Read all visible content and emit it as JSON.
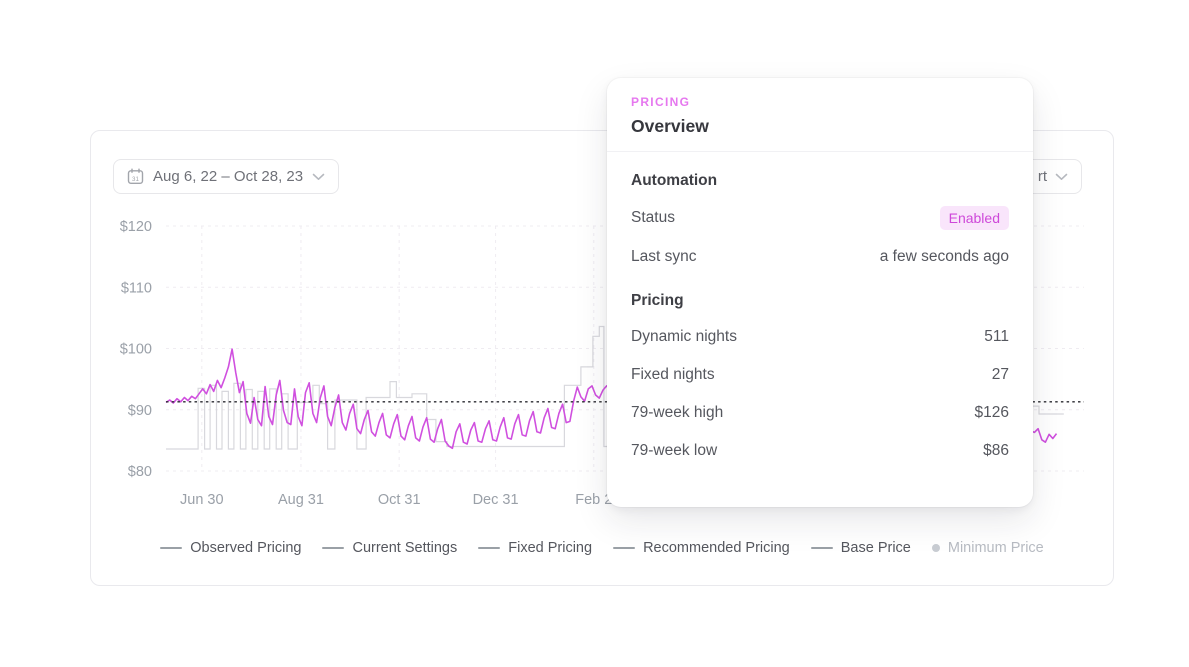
{
  "panel": {
    "date_range_picker": {
      "value": "Aug 6, 22 – Oct 28, 23",
      "icon": "calendar-icon"
    },
    "clipped_dropdown": {
      "visible_text": "rt",
      "icon": "chevron-down-icon"
    }
  },
  "overlay_card": {
    "eyebrow": "PRICING",
    "title": "Overview",
    "sections": [
      {
        "heading": "Automation",
        "rows": [
          {
            "label": "Status",
            "value": "Enabled",
            "style": "badge"
          },
          {
            "label": "Last sync",
            "value": "a few seconds ago",
            "style": "text"
          }
        ]
      },
      {
        "heading": "Pricing",
        "rows": [
          {
            "label": "Dynamic nights",
            "value": "511",
            "style": "text"
          },
          {
            "label": "Fixed nights",
            "value": "27",
            "style": "text"
          },
          {
            "label": "79-week high",
            "value": "$126",
            "style": "text"
          },
          {
            "label": "79-week low",
            "value": "$86",
            "style": "text"
          }
        ]
      }
    ]
  },
  "chart_data": {
    "type": "line",
    "title": "",
    "xlabel": "",
    "ylabel": "",
    "grid": true,
    "legend_position": "bottom",
    "x_axis": {
      "tick_labels": [
        "Jun 30",
        "Aug 31",
        "Oct 31",
        "Dec 31",
        "Feb 2"
      ],
      "tick_positions_pct": [
        3.9,
        14.7,
        25.4,
        35.9,
        46.6
      ]
    },
    "y_axis": {
      "tick_labels": [
        "$120",
        "$110",
        "$100",
        "$90",
        "$80"
      ],
      "tick_values": [
        120,
        110,
        100,
        90,
        80
      ],
      "unit": "$",
      "ylim": [
        76,
        124
      ]
    },
    "base_price_line": {
      "value": 91.3,
      "style": "dotted-black"
    },
    "legend": [
      {
        "label": "Observed Pricing",
        "marker": "line",
        "enabled": true
      },
      {
        "label": "Current Settings",
        "marker": "line",
        "enabled": true
      },
      {
        "label": "Fixed Pricing",
        "marker": "line",
        "enabled": true
      },
      {
        "label": "Recommended Pricing",
        "marker": "line",
        "enabled": true
      },
      {
        "label": "Base Price",
        "marker": "line",
        "enabled": true
      },
      {
        "label": "Minimum Price",
        "marker": "dot",
        "enabled": false
      }
    ],
    "series": [
      {
        "name": "Observed Pricing",
        "color": "#d050df",
        "shape": "jagged-line",
        "points": [
          [
            0,
            91.2
          ],
          [
            0.4,
            91.6
          ],
          [
            0.8,
            91.1
          ],
          [
            1.2,
            91.8
          ],
          [
            1.6,
            91.3
          ],
          [
            2,
            92
          ],
          [
            2.4,
            91.5
          ],
          [
            2.8,
            92.2
          ],
          [
            3.2,
            91.8
          ],
          [
            3.6,
            92.6
          ],
          [
            4,
            93.4
          ],
          [
            4.4,
            92.6
          ],
          [
            4.8,
            94.1
          ],
          [
            5.2,
            93
          ],
          [
            5.6,
            94.8
          ],
          [
            6,
            93.6
          ],
          [
            6.4,
            95.2
          ],
          [
            6.8,
            97
          ],
          [
            7.2,
            99.9
          ],
          [
            7.6,
            96
          ],
          [
            8,
            92.8
          ],
          [
            8.4,
            94.6
          ],
          [
            8.8,
            89.4
          ],
          [
            9.2,
            87.8
          ],
          [
            9.6,
            92
          ],
          [
            10,
            88.4
          ],
          [
            10.4,
            87.4
          ],
          [
            10.8,
            93.8
          ],
          [
            11.2,
            88.9
          ],
          [
            11.6,
            87.6
          ],
          [
            12,
            92.4
          ],
          [
            12.4,
            94.8
          ],
          [
            12.8,
            89.9
          ],
          [
            13.2,
            87.9
          ],
          [
            13.6,
            87.6
          ],
          [
            14,
            93.4
          ],
          [
            14.4,
            88.9
          ],
          [
            14.8,
            87.4
          ],
          [
            15.2,
            92.8
          ],
          [
            15.6,
            94.4
          ],
          [
            16,
            89.4
          ],
          [
            16.4,
            87.9
          ],
          [
            16.8,
            91.9
          ],
          [
            17.2,
            93.9
          ],
          [
            17.6,
            88.9
          ],
          [
            18,
            87.4
          ],
          [
            18.4,
            90.4
          ],
          [
            18.8,
            92.4
          ],
          [
            19.2,
            87.9
          ],
          [
            19.6,
            86.7
          ],
          [
            20,
            89.4
          ],
          [
            20.4,
            90.9
          ],
          [
            20.8,
            86.9
          ],
          [
            21.2,
            86.1
          ],
          [
            21.6,
            88.4
          ],
          [
            22,
            89.9
          ],
          [
            22.4,
            86.4
          ],
          [
            22.8,
            85.7
          ],
          [
            23.2,
            87.9
          ],
          [
            23.6,
            89.4
          ],
          [
            24,
            85.9
          ],
          [
            24.4,
            85.4
          ],
          [
            24.8,
            87.7
          ],
          [
            25.2,
            89.2
          ],
          [
            25.6,
            85.7
          ],
          [
            26,
            85.1
          ],
          [
            26.4,
            87.4
          ],
          [
            26.8,
            88.9
          ],
          [
            27.2,
            85.4
          ],
          [
            27.6,
            84.9
          ],
          [
            28,
            87.2
          ],
          [
            28.4,
            88.7
          ],
          [
            28.8,
            85.2
          ],
          [
            29.2,
            84.7
          ],
          [
            29.6,
            86.9
          ],
          [
            30,
            88.4
          ],
          [
            30.4,
            84.9
          ],
          [
            30.8,
            84.1
          ],
          [
            31.2,
            83.7
          ],
          [
            31.6,
            86.4
          ],
          [
            32,
            87.7
          ],
          [
            32.4,
            84.7
          ],
          [
            32.8,
            84.4
          ],
          [
            33.2,
            86.7
          ],
          [
            33.6,
            87.9
          ],
          [
            34,
            84.9
          ],
          [
            34.4,
            84.7
          ],
          [
            34.8,
            86.9
          ],
          [
            35.2,
            88.2
          ],
          [
            35.6,
            85.1
          ],
          [
            36,
            84.9
          ],
          [
            36.4,
            87.2
          ],
          [
            36.8,
            88.7
          ],
          [
            37.2,
            85.4
          ],
          [
            37.6,
            85.2
          ],
          [
            38,
            87.7
          ],
          [
            38.4,
            89.2
          ],
          [
            38.8,
            85.9
          ],
          [
            39.2,
            85.7
          ],
          [
            39.6,
            88.2
          ],
          [
            40,
            89.7
          ],
          [
            40.4,
            86.4
          ],
          [
            40.8,
            86.2
          ],
          [
            41.2,
            88.7
          ],
          [
            41.6,
            90.2
          ],
          [
            42,
            87.1
          ],
          [
            42.4,
            86.9
          ],
          [
            42.8,
            89.4
          ],
          [
            43.2,
            90.9
          ],
          [
            43.6,
            87.9
          ],
          [
            44,
            88.1
          ],
          [
            44.4,
            91.4
          ],
          [
            44.8,
            93.7
          ],
          [
            45.2,
            92.1
          ],
          [
            45.6,
            91.4
          ],
          [
            46,
            93.4
          ],
          [
            46.4,
            93.9
          ],
          [
            46.8,
            92.4
          ],
          [
            47.2,
            91.9
          ],
          [
            47.6,
            93.2
          ],
          [
            48,
            93.9
          ],
          [
            49,
            92.4
          ],
          [
            50,
            93.4
          ],
          [
            51,
            92
          ],
          [
            52,
            93
          ],
          [
            53,
            91.7
          ],
          [
            54,
            92.7
          ],
          [
            55,
            91.4
          ],
          [
            56,
            92.4
          ],
          [
            58,
            91
          ],
          [
            60,
            92
          ],
          [
            62,
            90.7
          ],
          [
            64,
            91.7
          ],
          [
            66,
            90.2
          ],
          [
            68,
            91.2
          ],
          [
            70,
            89.7
          ],
          [
            72,
            90.7
          ],
          [
            74,
            89.2
          ],
          [
            76,
            90.2
          ],
          [
            78,
            88.7
          ],
          [
            80,
            89.7
          ],
          [
            82,
            88.2
          ],
          [
            84,
            89.2
          ],
          [
            86,
            87.7
          ],
          [
            88,
            88.7
          ],
          [
            90,
            87.2
          ],
          [
            92,
            88
          ],
          [
            94,
            86.7
          ],
          [
            94.6,
            86.3
          ],
          [
            95,
            86.9
          ],
          [
            95.4,
            85.1
          ],
          [
            95.8,
            84.7
          ],
          [
            96.2,
            86
          ],
          [
            96.6,
            85.3
          ],
          [
            97,
            86.1
          ]
        ]
      },
      {
        "name": "Current Settings",
        "color": "#d8d8dd",
        "shape": "step-line",
        "points": [
          [
            0,
            83.6
          ],
          [
            3.5,
            83.6
          ],
          [
            3.5,
            93.5
          ],
          [
            4.2,
            93.5
          ],
          [
            4.2,
            83.6
          ],
          [
            4.8,
            83.6
          ],
          [
            4.8,
            94
          ],
          [
            5.5,
            94
          ],
          [
            5.5,
            83.6
          ],
          [
            6.1,
            83.6
          ],
          [
            6.1,
            93
          ],
          [
            6.8,
            93
          ],
          [
            6.8,
            83.6
          ],
          [
            7.4,
            83.6
          ],
          [
            7.4,
            94.3
          ],
          [
            8.1,
            94.3
          ],
          [
            8.1,
            83.6
          ],
          [
            8.7,
            83.6
          ],
          [
            8.7,
            93.3
          ],
          [
            9.4,
            93.3
          ],
          [
            9.4,
            83.6
          ],
          [
            10,
            83.6
          ],
          [
            10,
            93
          ],
          [
            10.7,
            93
          ],
          [
            10.7,
            83.6
          ],
          [
            11.3,
            83.6
          ],
          [
            11.3,
            93.4
          ],
          [
            12,
            93.4
          ],
          [
            12,
            83.6
          ],
          [
            12.6,
            83.6
          ],
          [
            12.6,
            92.6
          ],
          [
            13.3,
            92.6
          ],
          [
            13.3,
            83.6
          ],
          [
            14.3,
            83.6
          ],
          [
            14.3,
            91.2
          ],
          [
            16,
            91.2
          ],
          [
            16,
            94
          ],
          [
            16.7,
            94
          ],
          [
            16.7,
            91
          ],
          [
            17.6,
            91
          ],
          [
            17.6,
            83.6
          ],
          [
            18.4,
            83.6
          ],
          [
            18.4,
            91.6
          ],
          [
            20.8,
            91.6
          ],
          [
            20.8,
            83.6
          ],
          [
            21.8,
            83.6
          ],
          [
            21.8,
            92
          ],
          [
            24.4,
            92
          ],
          [
            24.4,
            94.6
          ],
          [
            25.1,
            94.6
          ],
          [
            25.1,
            92
          ],
          [
            26.8,
            92
          ],
          [
            26.8,
            92.6
          ],
          [
            28.4,
            92.6
          ],
          [
            28.4,
            88.4
          ],
          [
            29.4,
            88.4
          ],
          [
            29.4,
            84.8
          ],
          [
            30.6,
            84.8
          ],
          [
            30.6,
            84
          ],
          [
            43.4,
            84
          ],
          [
            43.4,
            94
          ],
          [
            45.2,
            94
          ],
          [
            45.2,
            97
          ],
          [
            46.5,
            97
          ],
          [
            46.5,
            102
          ],
          [
            47.2,
            102
          ],
          [
            47.2,
            103.6
          ],
          [
            47.7,
            103.6
          ],
          [
            47.7,
            84
          ],
          [
            52,
            84
          ],
          [
            52,
            89.2
          ],
          [
            94.1,
            89.2
          ],
          [
            94.1,
            90.6
          ],
          [
            95.1,
            90.6
          ],
          [
            95.1,
            89.3
          ],
          [
            97.8,
            89.3
          ]
        ]
      }
    ]
  },
  "colors": {
    "accent_pink": "#e678ef",
    "badge_bg": "#f9e5fb",
    "badge_text": "#ce48d9",
    "series_magenta": "#d050df",
    "series_gray": "#d8d8dd",
    "base_price_line": "#2a2a30",
    "grid": "#efecf1",
    "axis_text": "#9aa0a8",
    "legend_text": "#55575e",
    "legend_disabled_text": "#b7bbc2"
  }
}
